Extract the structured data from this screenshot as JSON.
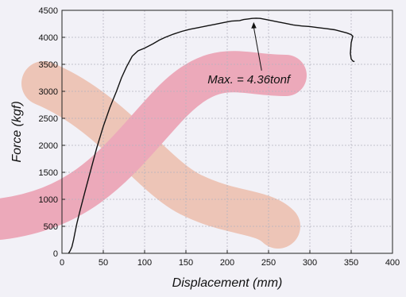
{
  "chart_data": {
    "type": "line",
    "title": "",
    "xlabel": "Displacement (mm)",
    "ylabel": "Force (kgf)",
    "xlim": [
      0,
      400
    ],
    "ylim": [
      0,
      4500
    ],
    "x_ticks": [
      0,
      50,
      100,
      150,
      200,
      250,
      300,
      350,
      400
    ],
    "y_ticks": [
      0,
      500,
      1000,
      1500,
      2000,
      2500,
      3000,
      3500,
      4000,
      4500
    ],
    "grid": true,
    "series": [
      {
        "x": [
          8,
          10,
          12,
          14,
          16,
          18,
          22,
          28,
          35,
          42,
          50,
          58,
          66,
          72,
          78,
          85,
          92,
          100,
          110,
          118,
          125,
          135,
          145,
          155,
          165,
          175,
          185,
          195,
          205,
          215,
          220,
          225,
          230,
          235,
          240,
          250,
          260,
          270,
          280,
          290,
          300,
          310,
          320,
          330,
          340,
          345,
          350,
          352,
          350,
          349,
          350,
          352,
          354
        ],
        "y": [
          0,
          50,
          120,
          250,
          400,
          550,
          800,
          1150,
          1550,
          1950,
          2350,
          2700,
          3000,
          3250,
          3450,
          3650,
          3750,
          3800,
          3880,
          3950,
          4000,
          4060,
          4110,
          4150,
          4180,
          4210,
          4240,
          4270,
          4300,
          4310,
          4330,
          4340,
          4350,
          4355,
          4350,
          4320,
          4290,
          4260,
          4230,
          4210,
          4200,
          4180,
          4160,
          4140,
          4100,
          4080,
          4050,
          4020,
          3900,
          3700,
          3600,
          3560,
          3550
        ]
      }
    ],
    "annotation": {
      "text": "Max. = 4.36tonf",
      "x": 232,
      "y": 4355
    }
  },
  "colors": {
    "background": "#f2f1f7",
    "line": "#111111",
    "grid": "#b4b4c0",
    "watermark_pink": "#e8708a",
    "watermark_peach": "#eaa284"
  }
}
